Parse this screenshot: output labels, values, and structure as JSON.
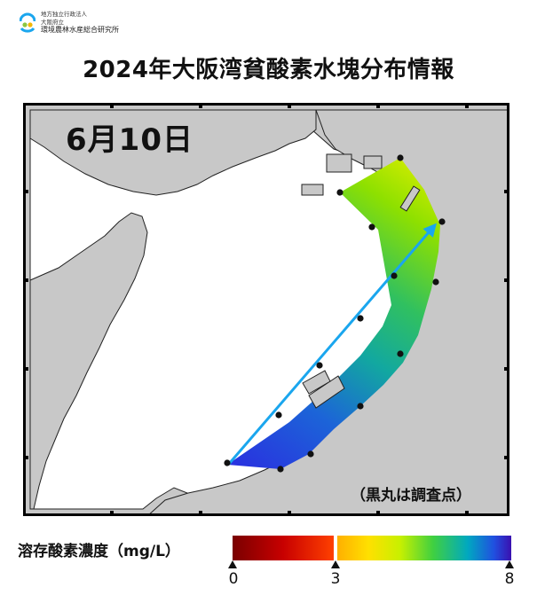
{
  "header": {
    "org_line1": "地方独立行政法人",
    "org_line2": "大阪府立",
    "org_line3": "環境農林水産総合研究所"
  },
  "title": "2024年大阪湾貧酸素水塊分布情報",
  "map": {
    "date_label": "6月10日",
    "note": "（黒丸は調査点）"
  },
  "colorbar": {
    "label": "溶存酸素濃度（mg/L）",
    "min": 0,
    "threshold": 3,
    "max": 8,
    "tick_labels": [
      "0",
      "3",
      "8"
    ],
    "colors": [
      "#7a0000",
      "#d40000",
      "#ff4a00",
      "#ff9400",
      "#ffd400",
      "#e6ff00",
      "#7fe000",
      "#00c060",
      "#00a0c8",
      "#2050e0",
      "#3010b0"
    ]
  },
  "colors": {
    "land": "#c8c8c8",
    "arrow": "#1aa6ee"
  }
}
